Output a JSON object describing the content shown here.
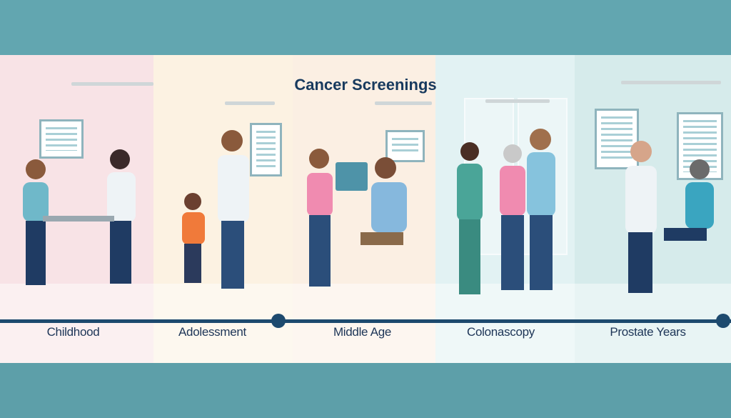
{
  "title": "Cancer Screenings",
  "stages": [
    {
      "label": "Childhood",
      "bg": "#f8e3e6"
    },
    {
      "label": "Adolessment",
      "bg": "#fcf2e2"
    },
    {
      "label": "Middle Age",
      "bg": "#fbefe3"
    },
    {
      "label": "Colonascopy",
      "bg": "#e2f2f3"
    },
    {
      "label": "Prostate Years",
      "bg": "#d6ebeb"
    }
  ],
  "colors": {
    "band": "#62a6b0",
    "timeline": "#1d4a6e",
    "title": "#173a5e"
  }
}
